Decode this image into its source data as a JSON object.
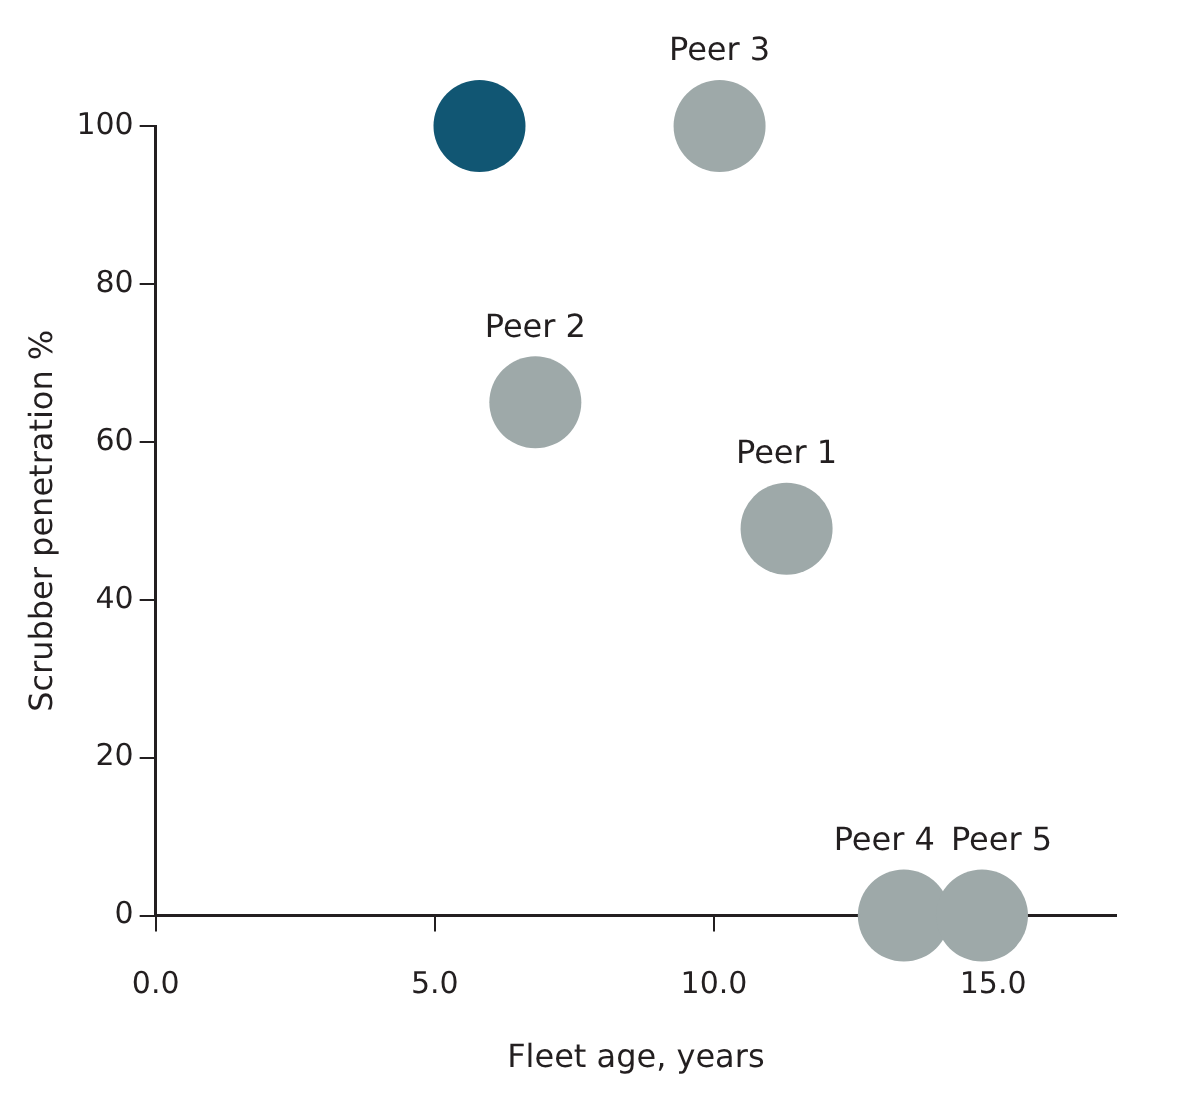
{
  "chart_data": {
    "type": "scatter",
    "xlabel": "Fleet age, years",
    "ylabel": "Scrubber penetration %",
    "x": [
      5.8,
      10.1,
      6.8,
      11.3,
      13.4,
      14.8
    ],
    "series": [
      {
        "values": [
          100,
          100,
          65,
          49,
          0,
          0
        ],
        "colors": [
          "#115673",
          "#9ea9a9",
          "#9ea9a9",
          "#9ea9a9",
          "#9ea9a9",
          "#9ea9a9"
        ]
      }
    ],
    "xlim": [
      0,
      17.2
    ],
    "ylim": [
      0,
      100
    ],
    "xticks": [
      {
        "value": 0,
        "label": "0.0"
      },
      {
        "value": 5,
        "label": "5.0"
      },
      {
        "value": 10,
        "label": "10.0"
      },
      {
        "value": 15,
        "label": "15.0"
      }
    ],
    "yticks": [
      0,
      20,
      40,
      60,
      80,
      100
    ],
    "grid": false,
    "legend": false,
    "marker": "circle",
    "annotations": [
      {
        "text": "Peer 3",
        "x": 10.1,
        "y": 100
      },
      {
        "text": "Peer 2",
        "x": 6.8,
        "y": 65
      },
      {
        "text": "Peer 1",
        "x": 11.3,
        "y": 49
      },
      {
        "text": "Peer 4",
        "x": 13.4,
        "y": 0
      },
      {
        "text": "Peer 5",
        "x": 14.8,
        "y": 0
      }
    ]
  }
}
